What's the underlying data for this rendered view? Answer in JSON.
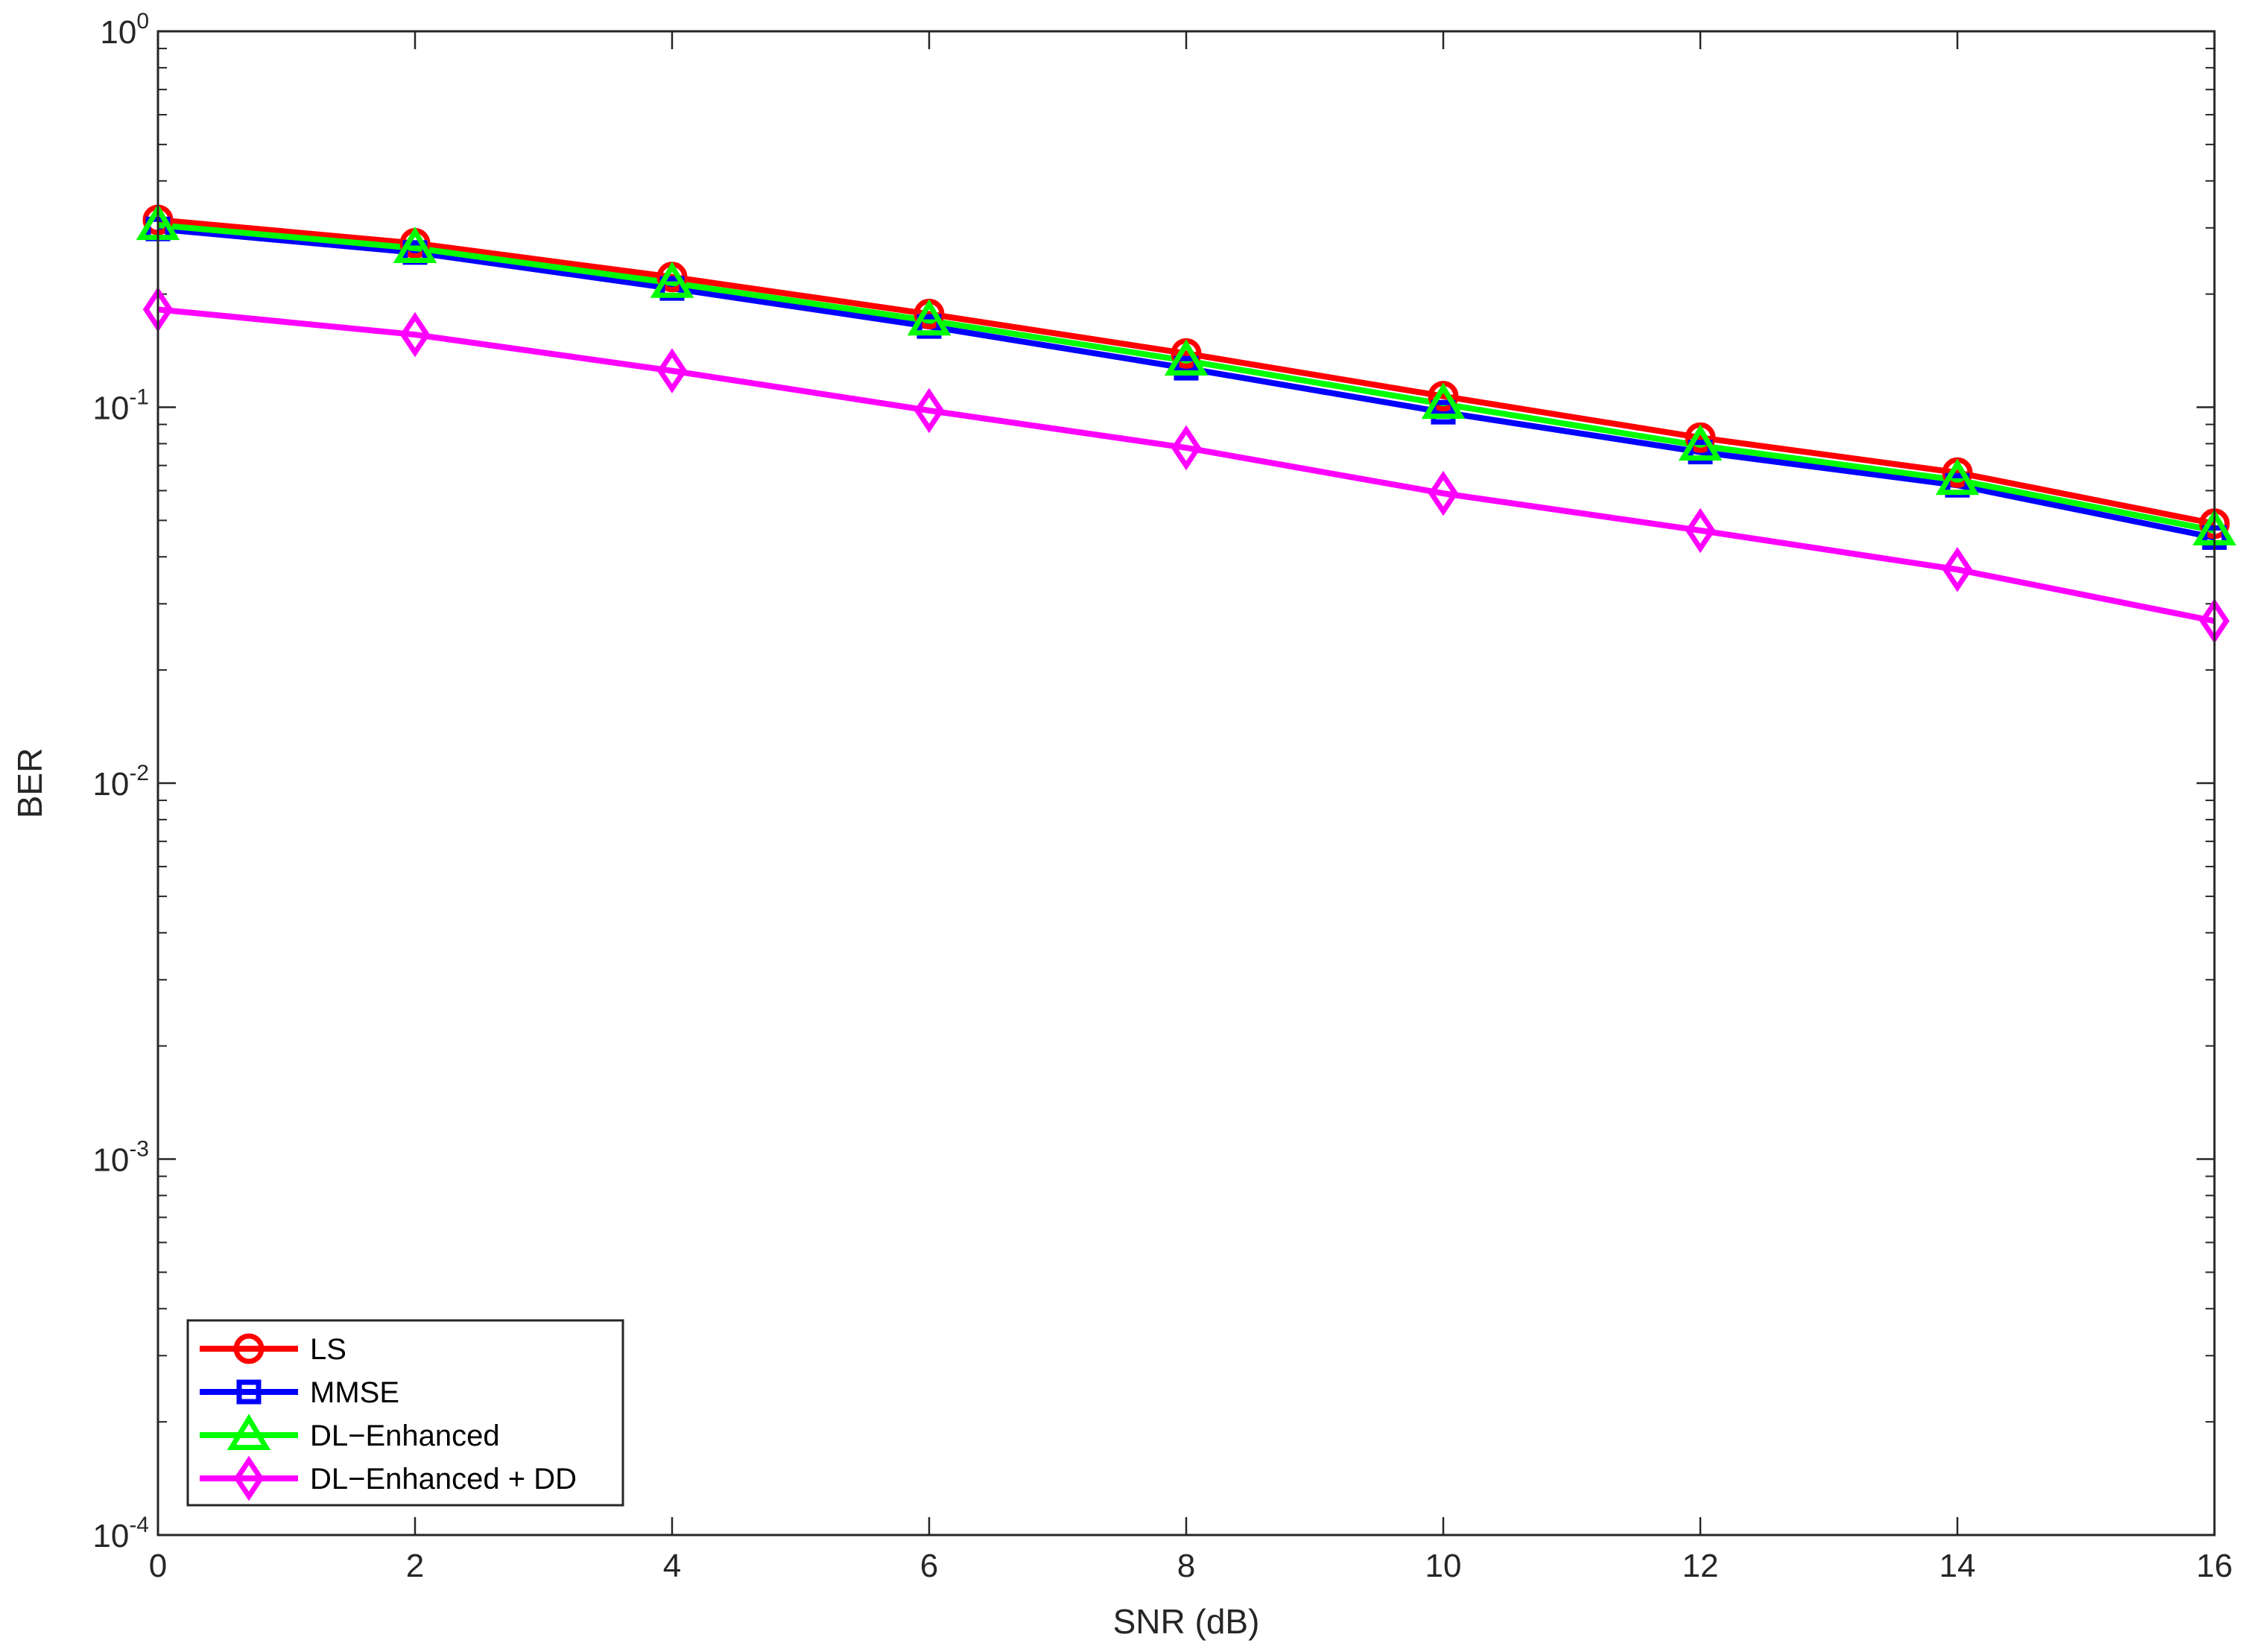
{
  "chart_data": {
    "type": "line",
    "xlabel": "SNR (dB)",
    "ylabel": "BER",
    "x": [
      0,
      2,
      4,
      6,
      8,
      10,
      12,
      14,
      16
    ],
    "xlim": [
      0,
      16
    ],
    "xticks": [
      0,
      2,
      4,
      6,
      8,
      10,
      12,
      14,
      16
    ],
    "yscale": "log",
    "ylim": [
      0.0001,
      1
    ],
    "yticks": [
      {
        "base": "10",
        "exp": "-4",
        "value": 0.0001
      },
      {
        "base": "10",
        "exp": "-3",
        "value": 0.001
      },
      {
        "base": "10",
        "exp": "-2",
        "value": 0.01
      },
      {
        "base": "10",
        "exp": "-1",
        "value": 0.1
      },
      {
        "base": "10",
        "exp": "0",
        "value": 1
      }
    ],
    "grid": false,
    "legend_position": "bottom-left",
    "series": [
      {
        "name": "LS",
        "color": "#ff0000",
        "marker": "circle",
        "values": [
          0.315,
          0.273,
          0.222,
          0.177,
          0.139,
          0.107,
          0.083,
          0.067,
          0.049
        ]
      },
      {
        "name": "MMSE",
        "color": "#0000ff",
        "marker": "square",
        "values": [
          0.298,
          0.258,
          0.207,
          0.164,
          0.127,
          0.097,
          0.076,
          0.062,
          0.045
        ]
      },
      {
        "name": "DL−Enhanced",
        "color": "#00ff00",
        "marker": "triangle",
        "values": [
          0.305,
          0.265,
          0.214,
          0.17,
          0.133,
          0.102,
          0.079,
          0.064,
          0.047
        ]
      },
      {
        "name": "DL−Enhanced + DD",
        "color": "#ff00ff",
        "marker": "diamond",
        "values": [
          0.182,
          0.156,
          0.125,
          0.098,
          0.078,
          0.059,
          0.047,
          0.037,
          0.027
        ]
      }
    ]
  }
}
